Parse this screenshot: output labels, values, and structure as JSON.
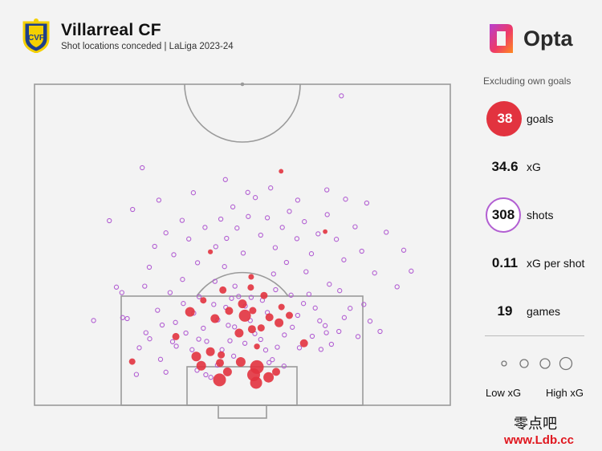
{
  "header": {
    "team": "Villarreal CF",
    "subtitle": "Shot locations conceded | LaLiga 2023-24",
    "brand": "Opta"
  },
  "panel": {
    "note": "Excluding own goals",
    "stats": [
      {
        "value": "38",
        "label": "goals"
      },
      {
        "value": "34.6",
        "label": "xG"
      },
      {
        "value": "308",
        "label": "shots"
      },
      {
        "value": "0.11",
        "label": "xG per shot"
      },
      {
        "value": "19",
        "label": "games"
      }
    ],
    "legend_low": "Low xG",
    "legend_high": "High xG"
  },
  "watermark": {
    "cn": "零点吧",
    "url": "www.Ldb.cc"
  },
  "colors": {
    "goal": "#e2333f",
    "shot": "#b25fd2",
    "pitch_line": "#9a9a9a",
    "background": "#f3f3f3"
  },
  "chart_data": {
    "type": "scatter",
    "description_of_units": "pitch coordinates: x across the pitch 0-100 (left to right), y distance from goal line 0-100",
    "goals": [
      {
        "x": 44.5,
        "y": 7.9,
        "xg": 0.55
      },
      {
        "x": 53.3,
        "y": 7.0,
        "xg": 0.5
      },
      {
        "x": 56.3,
        "y": 8.7,
        "xg": 0.4
      },
      {
        "x": 52.7,
        "y": 9.5,
        "xg": 0.55
      },
      {
        "x": 46.4,
        "y": 10.4,
        "xg": 0.3
      },
      {
        "x": 58.1,
        "y": 10.4,
        "xg": 0.25
      },
      {
        "x": 53.5,
        "y": 11.9,
        "xg": 0.6
      },
      {
        "x": 40.1,
        "y": 12.3,
        "xg": 0.35
      },
      {
        "x": 44.6,
        "y": 13.2,
        "xg": 0.25
      },
      {
        "x": 49.6,
        "y": 13.5,
        "xg": 0.35
      },
      {
        "x": 23.5,
        "y": 13.6,
        "xg": 0.15
      },
      {
        "x": 38.9,
        "y": 15.2,
        "xg": 0.35
      },
      {
        "x": 44.9,
        "y": 15.7,
        "xg": 0.2
      },
      {
        "x": 42.3,
        "y": 16.7,
        "xg": 0.3
      },
      {
        "x": 53.5,
        "y": 18.3,
        "xg": 0.12
      },
      {
        "x": 64.8,
        "y": 19.3,
        "xg": 0.25
      },
      {
        "x": 34.0,
        "y": 21.4,
        "xg": 0.2
      },
      {
        "x": 49.2,
        "y": 22.5,
        "xg": 0.3
      },
      {
        "x": 52.3,
        "y": 23.7,
        "xg": 0.25
      },
      {
        "x": 54.5,
        "y": 24.1,
        "xg": 0.2
      },
      {
        "x": 58.8,
        "y": 25.7,
        "xg": 0.3
      },
      {
        "x": 43.4,
        "y": 27.0,
        "xg": 0.3
      },
      {
        "x": 56.5,
        "y": 27.4,
        "xg": 0.25
      },
      {
        "x": 50.6,
        "y": 27.9,
        "xg": 0.5
      },
      {
        "x": 61.3,
        "y": 28.0,
        "xg": 0.2
      },
      {
        "x": 46.8,
        "y": 29.4,
        "xg": 0.25
      },
      {
        "x": 37.4,
        "y": 29.1,
        "xg": 0.35
      },
      {
        "x": 52.5,
        "y": 29.5,
        "xg": 0.2
      },
      {
        "x": 59.4,
        "y": 30.6,
        "xg": 0.15
      },
      {
        "x": 50.0,
        "y": 31.6,
        "xg": 0.3
      },
      {
        "x": 55.2,
        "y": 34.2,
        "xg": 0.2
      },
      {
        "x": 52.0,
        "y": 36.7,
        "xg": 0.15
      },
      {
        "x": 45.3,
        "y": 35.9,
        "xg": 0.2
      },
      {
        "x": 40.6,
        "y": 32.7,
        "xg": 0.15
      },
      {
        "x": 52.1,
        "y": 40.0,
        "xg": 0.1
      },
      {
        "x": 42.3,
        "y": 47.8,
        "xg": 0.06
      },
      {
        "x": 69.9,
        "y": 54.1,
        "xg": 0.04
      },
      {
        "x": 59.3,
        "y": 72.9,
        "xg": 0.04
      }
    ],
    "shots": [
      {
        "x": 21.2,
        "y": 27.3
      },
      {
        "x": 24.5,
        "y": 9.6
      },
      {
        "x": 30.3,
        "y": 14.3
      },
      {
        "x": 27.7,
        "y": 20.7
      },
      {
        "x": 29.6,
        "y": 29.6
      },
      {
        "x": 33.9,
        "y": 25.8
      },
      {
        "x": 32.6,
        "y": 35.1
      },
      {
        "x": 26.8,
        "y": 22.6
      },
      {
        "x": 35.6,
        "y": 39.2
      },
      {
        "x": 38.3,
        "y": 28.7
      },
      {
        "x": 40.6,
        "y": 24.0
      },
      {
        "x": 36.4,
        "y": 22.5
      },
      {
        "x": 41.4,
        "y": 19.9
      },
      {
        "x": 37.9,
        "y": 17.3
      },
      {
        "x": 39.1,
        "y": 10.9
      },
      {
        "x": 42.4,
        "y": 8.7
      },
      {
        "x": 44.0,
        "y": 12.5
      },
      {
        "x": 45.1,
        "y": 17.3
      },
      {
        "x": 47.0,
        "y": 20.1
      },
      {
        "x": 48.1,
        "y": 24.4
      },
      {
        "x": 46.0,
        "y": 30.5
      },
      {
        "x": 47.4,
        "y": 33.3
      },
      {
        "x": 48.2,
        "y": 37.1
      },
      {
        "x": 49.1,
        "y": 33.9
      },
      {
        "x": 50.7,
        "y": 30.9
      },
      {
        "x": 51.9,
        "y": 26.4
      },
      {
        "x": 53.0,
        "y": 22.3
      },
      {
        "x": 54.4,
        "y": 20.5
      },
      {
        "x": 55.6,
        "y": 17.2
      },
      {
        "x": 57.2,
        "y": 14.2
      },
      {
        "x": 58.4,
        "y": 18.1
      },
      {
        "x": 60.1,
        "y": 21.9
      },
      {
        "x": 62.0,
        "y": 24.3
      },
      {
        "x": 63.3,
        "y": 28.0
      },
      {
        "x": 64.7,
        "y": 31.7
      },
      {
        "x": 66.0,
        "y": 34.6
      },
      {
        "x": 67.5,
        "y": 30.3
      },
      {
        "x": 68.6,
        "y": 26.3
      },
      {
        "x": 70.2,
        "y": 22.6
      },
      {
        "x": 71.4,
        "y": 19.0
      },
      {
        "x": 73.2,
        "y": 23.0
      },
      {
        "x": 74.5,
        "y": 27.3
      },
      {
        "x": 75.9,
        "y": 30.2
      },
      {
        "x": 77.8,
        "y": 21.4
      },
      {
        "x": 79.2,
        "y": 31.4
      },
      {
        "x": 80.7,
        "y": 26.2
      },
      {
        "x": 83.1,
        "y": 23.0
      },
      {
        "x": 87.2,
        "y": 36.9
      },
      {
        "x": 90.6,
        "y": 41.8
      },
      {
        "x": 21.0,
        "y": 35.1
      },
      {
        "x": 26.5,
        "y": 37.1
      },
      {
        "x": 27.6,
        "y": 43.0
      },
      {
        "x": 28.9,
        "y": 49.5
      },
      {
        "x": 31.6,
        "y": 53.7
      },
      {
        "x": 33.5,
        "y": 46.9
      },
      {
        "x": 35.5,
        "y": 57.6
      },
      {
        "x": 37.1,
        "y": 51.8
      },
      {
        "x": 39.2,
        "y": 44.4
      },
      {
        "x": 41.0,
        "y": 55.4
      },
      {
        "x": 43.6,
        "y": 49.4
      },
      {
        "x": 44.8,
        "y": 58.0
      },
      {
        "x": 46.2,
        "y": 52.0
      },
      {
        "x": 47.7,
        "y": 61.8
      },
      {
        "x": 48.7,
        "y": 55.2
      },
      {
        "x": 50.2,
        "y": 47.4
      },
      {
        "x": 51.4,
        "y": 58.8
      },
      {
        "x": 53.1,
        "y": 64.7
      },
      {
        "x": 54.4,
        "y": 53.0
      },
      {
        "x": 56.0,
        "y": 58.4
      },
      {
        "x": 57.9,
        "y": 49.1
      },
      {
        "x": 59.6,
        "y": 55.4
      },
      {
        "x": 61.3,
        "y": 60.4
      },
      {
        "x": 63.1,
        "y": 51.9
      },
      {
        "x": 64.9,
        "y": 57.2
      },
      {
        "x": 66.6,
        "y": 47.2
      },
      {
        "x": 68.2,
        "y": 53.4
      },
      {
        "x": 70.4,
        "y": 59.4
      },
      {
        "x": 72.6,
        "y": 51.7
      },
      {
        "x": 74.4,
        "y": 45.3
      },
      {
        "x": 77.1,
        "y": 55.6
      },
      {
        "x": 78.7,
        "y": 48.0
      },
      {
        "x": 81.8,
        "y": 41.2
      },
      {
        "x": 84.6,
        "y": 53.9
      },
      {
        "x": 88.8,
        "y": 48.3
      },
      {
        "x": 18.0,
        "y": 57.5
      },
      {
        "x": 23.6,
        "y": 61.0
      },
      {
        "x": 29.9,
        "y": 63.9
      },
      {
        "x": 38.2,
        "y": 66.2
      },
      {
        "x": 45.9,
        "y": 70.3
      },
      {
        "x": 51.3,
        "y": 66.3
      },
      {
        "x": 56.8,
        "y": 67.7
      },
      {
        "x": 63.3,
        "y": 63.9
      },
      {
        "x": 70.3,
        "y": 67.1
      },
      {
        "x": 74.8,
        "y": 64.2
      },
      {
        "x": 79.9,
        "y": 63.0
      },
      {
        "x": 25.9,
        "y": 74.0
      },
      {
        "x": 73.8,
        "y": 96.4
      },
      {
        "x": 22.3,
        "y": 27.0
      },
      {
        "x": 14.2,
        "y": 26.4
      },
      {
        "x": 19.7,
        "y": 36.8
      },
      {
        "x": 33.2,
        "y": 19.8
      },
      {
        "x": 43.4,
        "y": 38.6
      },
      {
        "x": 45.7,
        "y": 43.2
      },
      {
        "x": 57.5,
        "y": 40.9
      },
      {
        "x": 60.6,
        "y": 44.5
      },
      {
        "x": 65.3,
        "y": 41.6
      },
      {
        "x": 70.9,
        "y": 37.7
      },
      {
        "x": 73.4,
        "y": 35.7
      },
      {
        "x": 39.6,
        "y": 33.8
      },
      {
        "x": 35.8,
        "y": 31.7
      },
      {
        "x": 43.1,
        "y": 31.4
      },
      {
        "x": 54.8,
        "y": 32.7
      },
      {
        "x": 58.0,
        "y": 36.0
      },
      {
        "x": 61.7,
        "y": 34.3
      },
      {
        "x": 44.1,
        "y": 26.6
      },
      {
        "x": 56.0,
        "y": 28.9
      },
      {
        "x": 50.6,
        "y": 19.3
      },
      {
        "x": 47.9,
        "y": 15.3
      },
      {
        "x": 41.2,
        "y": 9.5
      },
      {
        "x": 56.4,
        "y": 13.3
      },
      {
        "x": 39.5,
        "y": 20.6
      },
      {
        "x": 34.1,
        "y": 18.4
      },
      {
        "x": 30.7,
        "y": 25.0
      },
      {
        "x": 66.8,
        "y": 21.5
      },
      {
        "x": 68.9,
        "y": 17.4
      },
      {
        "x": 69.9,
        "y": 24.8
      },
      {
        "x": 63.7,
        "y": 17.9
      },
      {
        "x": 25.2,
        "y": 17.9
      },
      {
        "x": 31.6,
        "y": 10.3
      },
      {
        "x": 60.0,
        "y": 12.2
      },
      {
        "x": 46.6,
        "y": 24.9
      },
      {
        "x": 52.1,
        "y": 33.6
      }
    ],
    "xlim": [
      0,
      100
    ],
    "ylim": [
      0,
      100
    ]
  }
}
